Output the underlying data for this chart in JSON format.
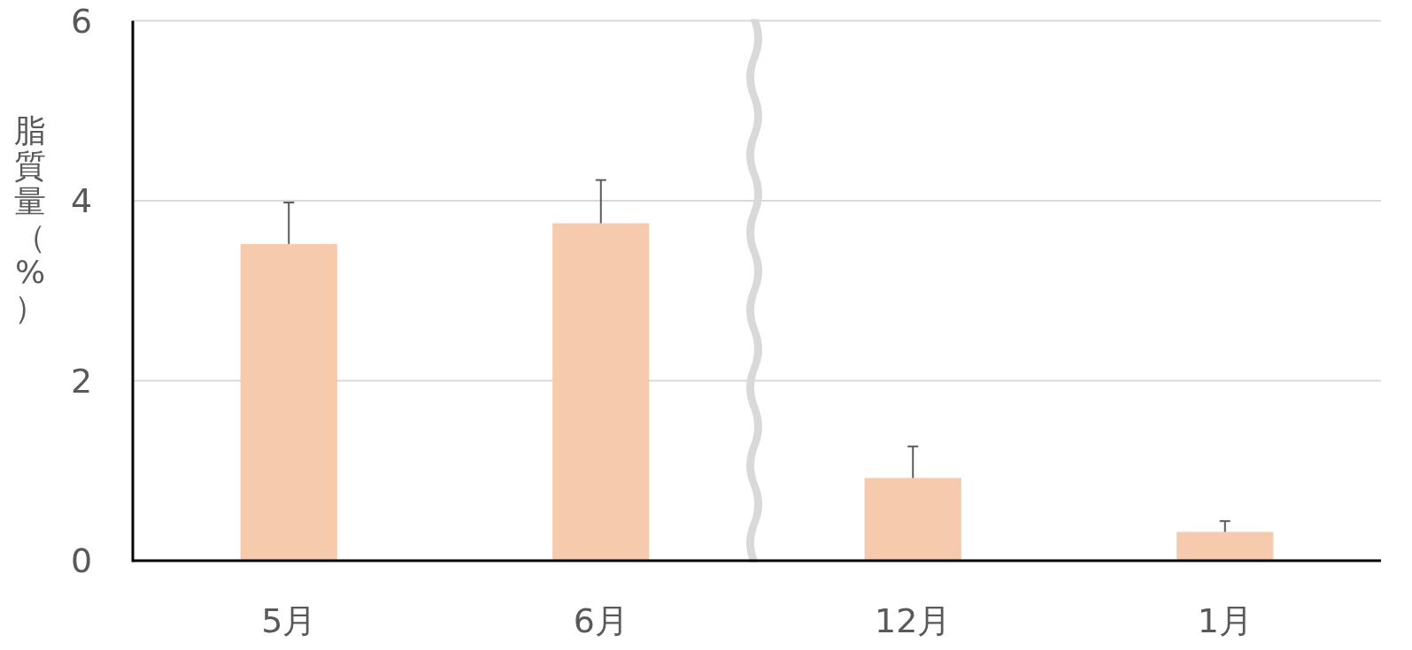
{
  "chart_data": {
    "type": "bar",
    "ylabel": "脂質量（%）",
    "categories": [
      "5月",
      "6月",
      "12月",
      "1月"
    ],
    "values": [
      3.52,
      3.75,
      0.92,
      0.32
    ],
    "errors": [
      [
        3.52,
        3.98
      ],
      [
        3.75,
        4.23
      ],
      [
        0.92,
        1.27
      ],
      [
        0.32,
        0.44
      ]
    ],
    "color": "#f6caad",
    "ylim": [
      0,
      6
    ],
    "yticks": [
      0,
      2,
      4,
      6
    ],
    "grid": "y"
  }
}
